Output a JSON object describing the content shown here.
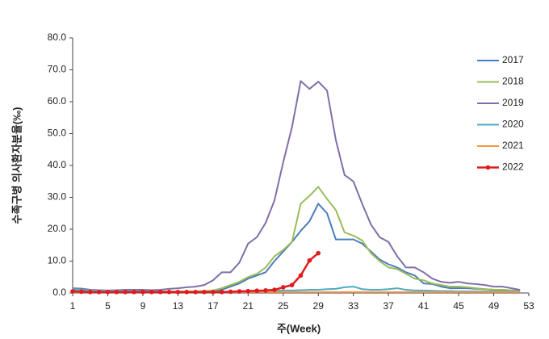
{
  "chart_data": {
    "type": "line",
    "y_label": "수족구병 의사환자분율(‰)",
    "x_label": "주(Week)",
    "x": [
      1,
      2,
      3,
      4,
      5,
      6,
      7,
      8,
      9,
      10,
      11,
      12,
      13,
      14,
      15,
      16,
      17,
      18,
      19,
      20,
      21,
      22,
      23,
      24,
      25,
      26,
      27,
      28,
      29,
      30,
      31,
      32,
      33,
      34,
      35,
      36,
      37,
      38,
      39,
      40,
      41,
      42,
      43,
      44,
      45,
      46,
      47,
      48,
      49,
      50,
      51,
      52
    ],
    "xlim": [
      1,
      53
    ],
    "xticks": [
      1,
      5,
      9,
      13,
      17,
      21,
      25,
      29,
      33,
      37,
      41,
      45,
      49,
      53
    ],
    "ylim": [
      0,
      80
    ],
    "yticks": [
      {
        "value": 0,
        "label": "0.0"
      },
      {
        "value": 10,
        "label": "10.0"
      },
      {
        "value": 20,
        "label": "20.0"
      },
      {
        "value": 30,
        "label": "30.0"
      },
      {
        "value": 40,
        "label": "40.0"
      },
      {
        "value": 50,
        "label": "50.0"
      },
      {
        "value": 60,
        "label": "60.0"
      },
      {
        "value": 70,
        "label": "70.0"
      },
      {
        "value": 80,
        "label": "80.0"
      }
    ],
    "legend": "right",
    "series": [
      {
        "name": "2017",
        "color": "#4a7ebb",
        "values": [
          0.8,
          0.7,
          0.6,
          0.5,
          0.5,
          0.5,
          0.5,
          0.5,
          0.5,
          0.5,
          0.5,
          0.5,
          0.5,
          0.5,
          0.5,
          0.6,
          0.7,
          1.0,
          2.0,
          3.0,
          4.5,
          5.5,
          6.5,
          10.0,
          13.0,
          16.0,
          19.5,
          22.5,
          28.0,
          25.0,
          16.8,
          16.8,
          16.8,
          15.5,
          13.0,
          10.5,
          9.0,
          8.0,
          6.5,
          5.5,
          3.0,
          2.8,
          2.0,
          1.5,
          1.5,
          1.5,
          1.3,
          1.2,
          1.0,
          1.0,
          0.8,
          0.8
        ]
      },
      {
        "name": "2018",
        "color": "#9bbb59",
        "values": [
          0.8,
          0.7,
          0.6,
          0.5,
          0.5,
          0.5,
          0.5,
          0.5,
          0.5,
          0.5,
          0.5,
          0.5,
          0.5,
          0.5,
          0.5,
          0.6,
          0.8,
          1.5,
          2.5,
          3.5,
          5.0,
          6.0,
          8.0,
          11.5,
          13.5,
          16.0,
          28.0,
          30.5,
          33.3,
          29.5,
          26.0,
          19.0,
          18.0,
          16.5,
          12.5,
          10.0,
          8.0,
          7.5,
          6.0,
          4.5,
          4.0,
          3.0,
          2.5,
          2.0,
          2.0,
          1.8,
          1.5,
          1.2,
          1.0,
          1.0,
          0.8,
          0.8
        ]
      },
      {
        "name": "2019",
        "color": "#7f6fa8",
        "values": [
          1.5,
          1.4,
          1.0,
          0.9,
          0.8,
          0.9,
          1.0,
          1.0,
          1.0,
          0.9,
          1.0,
          1.3,
          1.5,
          1.8,
          2.0,
          2.5,
          4.0,
          6.5,
          6.5,
          9.5,
          15.5,
          17.5,
          22,
          29,
          41,
          52,
          66.5,
          64,
          66.3,
          63.5,
          48,
          37,
          35,
          28,
          21.5,
          17.5,
          16,
          11.5,
          8,
          8,
          6.5,
          4.5,
          3.5,
          3.2,
          3.5,
          3.0,
          2.8,
          2.5,
          2.0,
          2.0,
          1.5,
          1.0
        ]
      },
      {
        "name": "2020",
        "color": "#4bacc6",
        "values": [
          1.2,
          1.0,
          0.8,
          0.7,
          0.6,
          0.6,
          0.7,
          0.6,
          0.5,
          0.5,
          0.4,
          0.3,
          0.3,
          0.3,
          0.3,
          0.3,
          0.3,
          0.3,
          0.4,
          0.5,
          0.5,
          0.6,
          0.6,
          0.7,
          0.8,
          0.8,
          0.9,
          1.0,
          1.0,
          1.2,
          1.3,
          1.8,
          2.0,
          1.2,
          1.0,
          1.0,
          1.2,
          1.5,
          1.0,
          0.8,
          0.8,
          0.7,
          0.6,
          0.6,
          0.5,
          0.5,
          0.5,
          0.5,
          0.5,
          0.5,
          0.5,
          0.5
        ]
      },
      {
        "name": "2021",
        "color": "#f79646",
        "values": [
          0.3,
          0.3,
          0.3,
          0.3,
          0.3,
          0.3,
          0.3,
          0.3,
          0.3,
          0.3,
          0.3,
          0.3,
          0.3,
          0.3,
          0.3,
          0.3,
          0.3,
          0.3,
          0.3,
          0.3,
          0.3,
          0.3,
          0.3,
          0.3,
          0.3,
          0.3,
          0.3,
          0.3,
          0.3,
          0.3,
          0.3,
          0.3,
          0.3,
          0.3,
          0.3,
          0.3,
          0.3,
          0.3,
          0.3,
          0.3,
          0.3,
          0.3,
          0.3,
          0.3,
          0.3,
          0.3,
          0.3,
          0.3,
          0.3,
          0.3,
          0.3,
          0.3
        ]
      },
      {
        "name": "2022",
        "color": "#e31a1c",
        "markers": true,
        "values": [
          0.5,
          0.4,
          0.3,
          0.3,
          0.3,
          0.3,
          0.3,
          0.3,
          0.3,
          0.3,
          0.3,
          0.3,
          0.3,
          0.3,
          0.3,
          0.3,
          0.3,
          0.3,
          0.4,
          0.5,
          0.6,
          0.7,
          0.8,
          1.0,
          1.8,
          2.5,
          5.5,
          10.2,
          12.5,
          null,
          null,
          null,
          null,
          null,
          null,
          null,
          null,
          null,
          null,
          null,
          null,
          null,
          null,
          null,
          null,
          null,
          null,
          null,
          null,
          null,
          null,
          null
        ]
      }
    ]
  }
}
